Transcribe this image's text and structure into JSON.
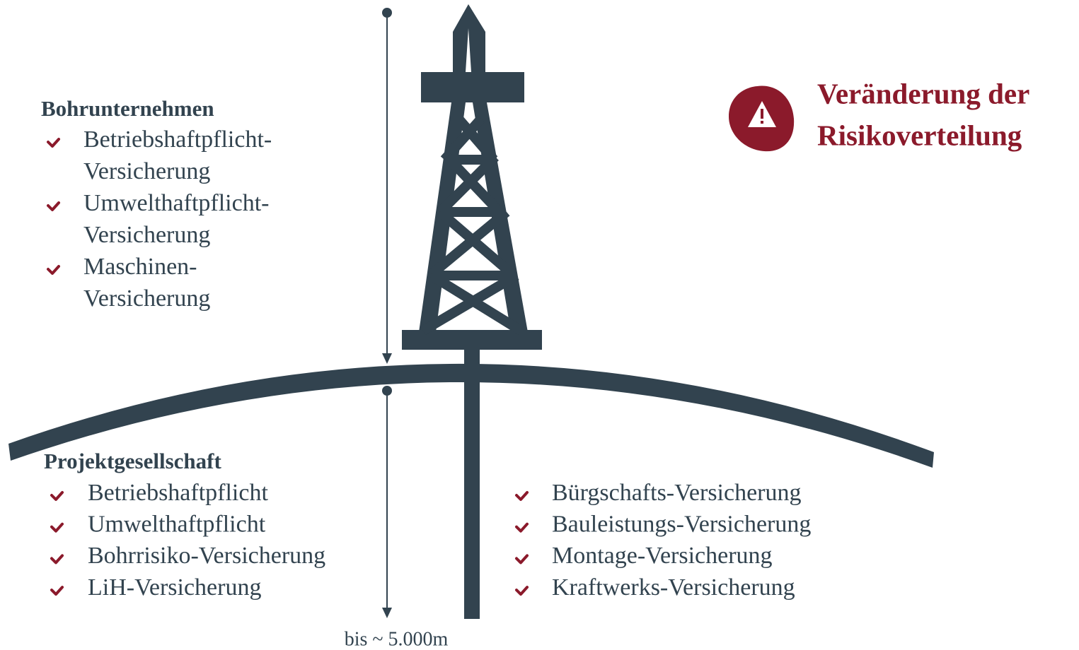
{
  "drilling_company": {
    "title": "Bohrunternehmen",
    "items": [
      [
        "Betriebshaftpflicht-",
        "Versicherung"
      ],
      [
        "Umwelthaftpflicht-",
        "Versicherung"
      ],
      [
        "Maschinen-",
        "Versicherung"
      ]
    ]
  },
  "project_company": {
    "title": "Projektgesellschaft",
    "items": [
      [
        "Betriebshaftpflicht"
      ],
      [
        "Umwelthaftpflicht"
      ],
      [
        "Bohrrisiko-Versicherung"
      ],
      [
        "LiH-Versicherung"
      ]
    ]
  },
  "plant_insurance": {
    "items": [
      [
        "Bürgschafts-Versicherung"
      ],
      [
        "Bauleistungs-Versicherung"
      ],
      [
        "Montage-Versicherung"
      ],
      [
        "Kraftwerks-Versicherung"
      ]
    ]
  },
  "alert": {
    "lines": [
      "Veränderung der",
      "Risikoverteilung"
    ]
  },
  "depth_label": "bis ~ 5.000m"
}
